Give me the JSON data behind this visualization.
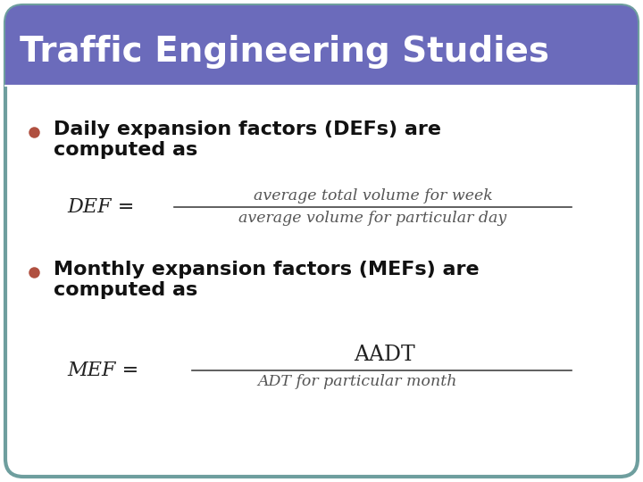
{
  "title": "Traffic Engineering Studies",
  "title_bg_color": "#6B6BBB",
  "title_text_color": "#ffffff",
  "border_color": "#6E9E9E",
  "bullet_color": "#B05040",
  "bullet1_line1": "Daily expansion factors (DEFs) are",
  "bullet1_line2": "computed as",
  "bullet2_line1": "Monthly expansion factors (MEFs) are",
  "bullet2_line2": "computed as",
  "def_label": "DEF = ",
  "def_numerator": "average total volume for week",
  "def_denominator": "average volume for particular day",
  "mef_label": "MEF = ",
  "mef_numerator": "AADT",
  "mef_denominator": "ADT for particular month",
  "fig_width": 7.2,
  "fig_height": 5.4,
  "dpi": 100
}
